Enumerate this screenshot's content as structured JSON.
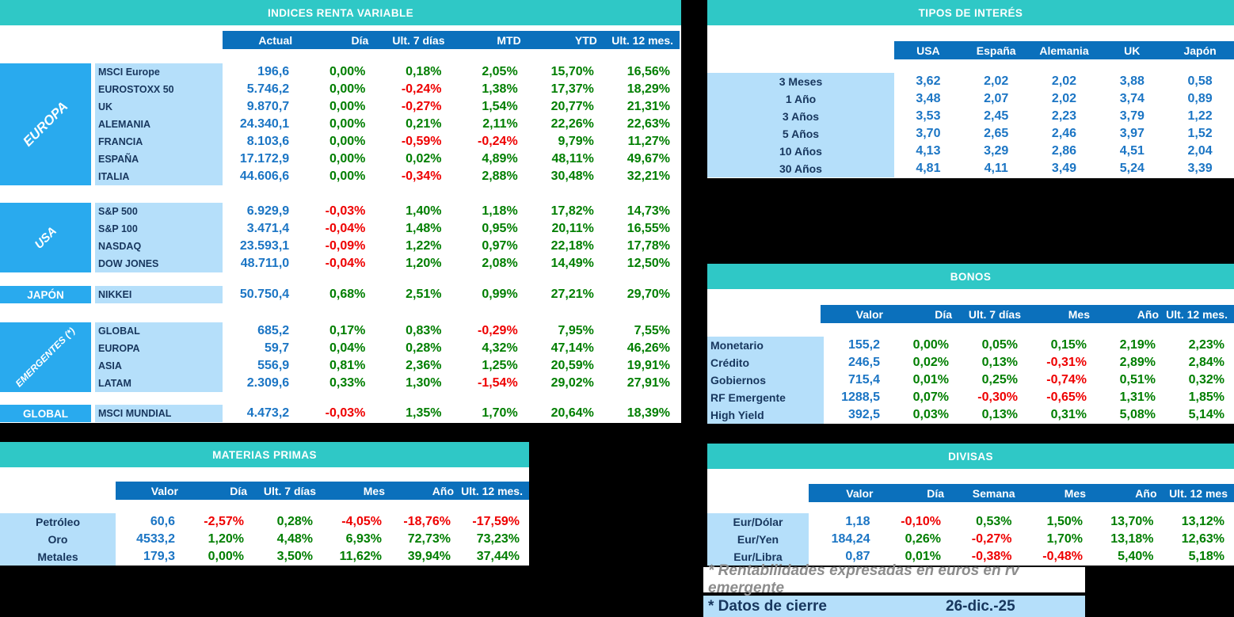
{
  "colors": {
    "teal": "#2FC8C6",
    "header_blue": "#0B70BC",
    "category_blue": "#29AAEE",
    "label_blue": "#B5DFFA",
    "navy": "#17365D",
    "value_blue": "#1B75C4",
    "green": "#007E00",
    "red": "#EE0000",
    "gray": "#8C8C8C",
    "page_background": "#000000"
  },
  "indices": {
    "title": "INDICES RENTA VARIABLE",
    "headers": [
      "Actual",
      "Día",
      "Ult. 7 días",
      "MTD",
      "YTD",
      "Ult. 12 mes."
    ],
    "groups": [
      {
        "name": "EUROPA",
        "rows": [
          {
            "label": "MSCI Europe",
            "values": [
              "196,6",
              "0,00%",
              "0,18%",
              "2,05%",
              "15,70%",
              "16,56%"
            ]
          },
          {
            "label": "EUROSTOXX 50",
            "values": [
              "5.746,2",
              "0,00%",
              "-0,24%",
              "1,38%",
              "17,37%",
              "18,29%"
            ]
          },
          {
            "label": "UK",
            "values": [
              "9.870,7",
              "0,00%",
              "-0,27%",
              "1,54%",
              "20,77%",
              "21,31%"
            ]
          },
          {
            "label": "ALEMANIA",
            "values": [
              "24.340,1",
              "0,00%",
              "0,21%",
              "2,11%",
              "22,26%",
              "22,63%"
            ]
          },
          {
            "label": "FRANCIA",
            "values": [
              "8.103,6",
              "0,00%",
              "-0,59%",
              "-0,24%",
              "9,79%",
              "11,27%"
            ]
          },
          {
            "label": "ESPAÑA",
            "values": [
              "17.172,9",
              "0,00%",
              "0,02%",
              "4,89%",
              "48,11%",
              "49,67%"
            ]
          },
          {
            "label": "ITALIA",
            "values": [
              "44.606,6",
              "0,00%",
              "-0,34%",
              "2,88%",
              "30,48%",
              "32,21%"
            ]
          }
        ]
      },
      {
        "name": "USA",
        "rows": [
          {
            "label": "S&P 500",
            "values": [
              "6.929,9",
              "-0,03%",
              "1,40%",
              "1,18%",
              "17,82%",
              "14,73%"
            ]
          },
          {
            "label": "S&P 100",
            "values": [
              "3.471,4",
              "-0,04%",
              "1,48%",
              "0,95%",
              "20,11%",
              "16,55%"
            ]
          },
          {
            "label": "NASDAQ",
            "values": [
              "23.593,1",
              "-0,09%",
              "1,22%",
              "0,97%",
              "22,18%",
              "17,78%"
            ]
          },
          {
            "label": "DOW JONES",
            "values": [
              "48.711,0",
              "-0,04%",
              "1,20%",
              "2,08%",
              "14,49%",
              "12,50%"
            ]
          }
        ]
      },
      {
        "name": "JAPÓN",
        "rows": [
          {
            "label": "NIKKEI",
            "values": [
              "50.750,4",
              "0,68%",
              "2,51%",
              "0,99%",
              "27,21%",
              "29,70%"
            ]
          }
        ]
      },
      {
        "name": "EMERGENTES (*)",
        "rows": [
          {
            "label": "GLOBAL",
            "values": [
              "685,2",
              "0,17%",
              "0,83%",
              "-0,29%",
              "7,95%",
              "7,55%"
            ]
          },
          {
            "label": "EUROPA",
            "values": [
              "59,7",
              "0,04%",
              "0,28%",
              "4,32%",
              "47,14%",
              "46,26%"
            ]
          },
          {
            "label": "ASIA",
            "values": [
              "556,9",
              "0,81%",
              "2,36%",
              "1,25%",
              "20,59%",
              "19,91%"
            ]
          },
          {
            "label": "LATAM",
            "values": [
              "2.309,6",
              "0,33%",
              "1,30%",
              "-1,54%",
              "29,02%",
              "27,91%"
            ]
          }
        ]
      },
      {
        "name": "GLOBAL",
        "rows": [
          {
            "label": "MSCI MUNDIAL",
            "values": [
              "4.473,2",
              "-0,03%",
              "1,35%",
              "1,70%",
              "20,64%",
              "18,39%"
            ]
          }
        ]
      }
    ]
  },
  "tipos": {
    "title": "TIPOS DE INTERÉS",
    "headers": [
      "USA",
      "España",
      "Alemania",
      "UK",
      "Japón"
    ],
    "rows": [
      {
        "label": "3 Meses",
        "values": [
          "3,62",
          "2,02",
          "2,02",
          "3,88",
          "0,58"
        ]
      },
      {
        "label": "1 Año",
        "values": [
          "3,48",
          "2,07",
          "2,02",
          "3,74",
          "0,89"
        ]
      },
      {
        "label": "3 Años",
        "values": [
          "3,53",
          "2,45",
          "2,23",
          "3,79",
          "1,22"
        ]
      },
      {
        "label": "5 Años",
        "values": [
          "3,70",
          "2,65",
          "2,46",
          "3,97",
          "1,52"
        ]
      },
      {
        "label": "10 Años",
        "values": [
          "4,13",
          "3,29",
          "2,86",
          "4,51",
          "2,04"
        ]
      },
      {
        "label": "30 Años",
        "values": [
          "4,81",
          "4,11",
          "3,49",
          "5,24",
          "3,39"
        ]
      }
    ]
  },
  "bonos": {
    "title": "BONOS",
    "headers": [
      "Valor",
      "Día",
      "Ult. 7 días",
      "Mes",
      "Año",
      "Ult. 12 mes."
    ],
    "rows": [
      {
        "label": "Monetario",
        "values": [
          "155,2",
          "0,00%",
          "0,05%",
          "0,15%",
          "2,19%",
          "2,23%"
        ]
      },
      {
        "label": "Crédito",
        "values": [
          "246,5",
          "0,02%",
          "0,13%",
          "-0,31%",
          "2,89%",
          "2,84%"
        ]
      },
      {
        "label": "Gobiernos",
        "values": [
          "715,4",
          "0,01%",
          "0,25%",
          "-0,74%",
          "0,51%",
          "0,32%"
        ]
      },
      {
        "label": "RF Emergente",
        "values": [
          "1288,5",
          "0,07%",
          "-0,30%",
          "-0,65%",
          "1,31%",
          "1,85%"
        ]
      },
      {
        "label": "High Yield",
        "values": [
          "392,5",
          "0,03%",
          "0,13%",
          "0,31%",
          "5,08%",
          "5,14%"
        ]
      }
    ]
  },
  "materias": {
    "title": "MATERIAS PRIMAS",
    "headers": [
      "Valor",
      "Día",
      "Ult. 7 días",
      "Mes",
      "Año",
      "Ult. 12 mes."
    ],
    "rows": [
      {
        "label": "Petróleo",
        "values": [
          "60,6",
          "-2,57%",
          "0,28%",
          "-4,05%",
          "-18,76%",
          "-17,59%"
        ]
      },
      {
        "label": "Oro",
        "values": [
          "4533,2",
          "1,20%",
          "4,48%",
          "6,93%",
          "72,73%",
          "73,23%"
        ]
      },
      {
        "label": "Metales",
        "values": [
          "179,3",
          "0,00%",
          "3,50%",
          "11,62%",
          "39,94%",
          "37,44%"
        ]
      }
    ]
  },
  "divisas": {
    "title": "DIVISAS",
    "headers": [
      "Valor",
      "Día",
      "Semana",
      "Mes",
      "Año",
      "Ult. 12 mes"
    ],
    "rows": [
      {
        "label": "Eur/Dólar",
        "values": [
          "1,18",
          "-0,10%",
          "0,53%",
          "1,50%",
          "13,70%",
          "13,12%"
        ]
      },
      {
        "label": "Eur/Yen",
        "values": [
          "184,24",
          "0,26%",
          "-0,27%",
          "1,70%",
          "13,18%",
          "12,63%"
        ]
      },
      {
        "label": "Eur/Libra",
        "values": [
          "0,87",
          "0,01%",
          "-0,38%",
          "-0,48%",
          "5,40%",
          "5,18%"
        ]
      }
    ]
  },
  "notes": {
    "emergente": "* Rentabilidades expresadas en euros en rv emergente",
    "cierre_label": "* Datos de cierre",
    "cierre_date": "26-dic.-25"
  }
}
